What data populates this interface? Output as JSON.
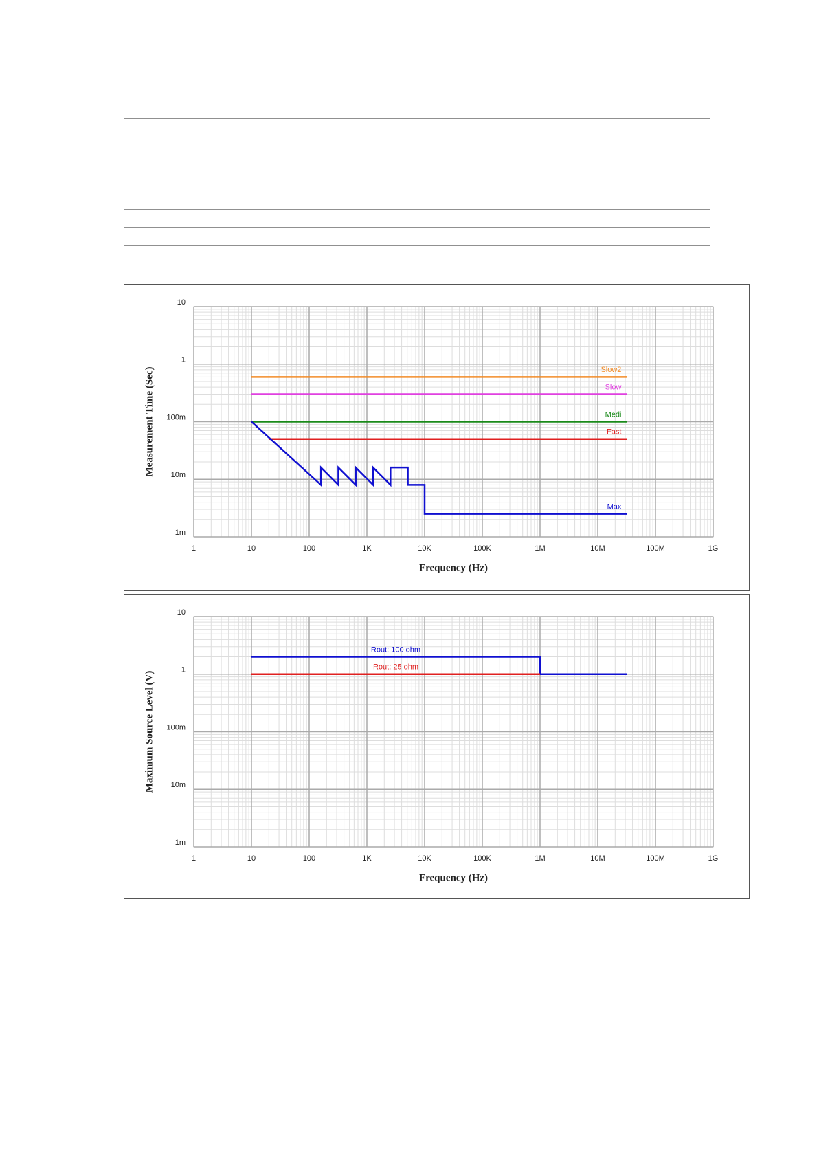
{
  "chart_data": [
    {
      "type": "line",
      "xlabel": "Frequency (Hz)",
      "ylabel": "Measurement Time (Sec)",
      "xscale": "log",
      "yscale": "log",
      "grid": true,
      "minor_grid": true,
      "xlim": [
        1,
        1000000000
      ],
      "ylim": [
        0.001,
        10
      ],
      "xticks": [
        1,
        10,
        100,
        {
          "value": 1000,
          "label": "1K"
        },
        {
          "value": 10000,
          "label": "10K"
        },
        {
          "value": 100000,
          "label": "100K"
        },
        {
          "value": 1000000,
          "label": "1M"
        },
        {
          "value": 10000000,
          "label": "10M"
        },
        {
          "value": 100000000,
          "label": "100M"
        },
        {
          "value": 1000000000,
          "label": "1G"
        }
      ],
      "yticks": [
        {
          "value": 0.001,
          "label": "1m"
        },
        {
          "value": 0.01,
          "label": "10m"
        },
        {
          "value": 0.1,
          "label": "100m"
        },
        1,
        10
      ],
      "series": [
        {
          "name": "Slow2",
          "color": "#f28c28",
          "x": [
            10,
            32000000
          ],
          "values": [
            0.6,
            0.6
          ]
        },
        {
          "name": "Slow",
          "color": "#e040e0",
          "x": [
            10,
            32000000
          ],
          "values": [
            0.3,
            0.3
          ]
        },
        {
          "name": "Medi",
          "color": "#1a8a1a",
          "x": [
            10,
            32000000
          ],
          "values": [
            0.1,
            0.1
          ]
        },
        {
          "name": "Fast",
          "color": "#e02020",
          "x": [
            20,
            32000000
          ],
          "values": [
            0.05,
            0.05
          ]
        },
        {
          "name": "Max",
          "color": "#1010d0",
          "x": [
            10,
            160,
            160,
            320,
            320,
            640,
            640,
            1280,
            1280,
            2560,
            2560,
            5120,
            5120,
            10000,
            10000,
            32000000
          ],
          "values": [
            0.1,
            0.008,
            0.016,
            0.008,
            0.016,
            0.008,
            0.016,
            0.008,
            0.016,
            0.008,
            0.016,
            0.016,
            0.008,
            0.008,
            0.0025,
            0.0025
          ]
        }
      ]
    },
    {
      "type": "line",
      "xlabel": "Frequency (Hz)",
      "ylabel": "Maximum Source Level (V)",
      "xscale": "log",
      "yscale": "log",
      "grid": true,
      "minor_grid": true,
      "xlim": [
        1,
        1000000000
      ],
      "ylim": [
        0.001,
        10
      ],
      "xticks": [
        1,
        10,
        100,
        {
          "value": 1000,
          "label": "1K"
        },
        {
          "value": 10000,
          "label": "10K"
        },
        {
          "value": 100000,
          "label": "100K"
        },
        {
          "value": 1000000,
          "label": "1M"
        },
        {
          "value": 10000000,
          "label": "10M"
        },
        {
          "value": 100000000,
          "label": "100M"
        },
        {
          "value": 1000000000,
          "label": "1G"
        }
      ],
      "yticks": [
        {
          "value": 0.001,
          "label": "1m"
        },
        {
          "value": 0.01,
          "label": "10m"
        },
        {
          "value": 0.1,
          "label": "100m"
        },
        1,
        10
      ],
      "series": [
        {
          "name": "Rout: 100 ohm",
          "color": "#1010d0",
          "x": [
            10,
            1000000,
            1000000,
            32000000
          ],
          "values": [
            2,
            2,
            1,
            1
          ]
        },
        {
          "name": "Rout: 25 ohm",
          "color": "#e02020",
          "x": [
            10,
            1000000
          ],
          "values": [
            1,
            1
          ]
        }
      ]
    }
  ]
}
